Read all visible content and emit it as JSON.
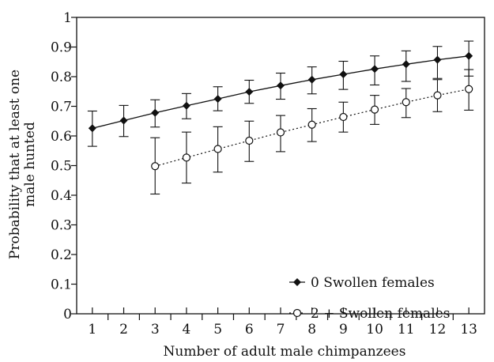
{
  "chart_data": {
    "type": "line",
    "title": "",
    "xlabel": "Number of adult male chimpanzees",
    "ylabel_lines": [
      "Probability that at least one",
      "male hunted"
    ],
    "xlim": [
      0.5,
      13.5
    ],
    "ylim": [
      0,
      1
    ],
    "x_ticks": [
      "1",
      "2",
      "3",
      "4",
      "5",
      "6",
      "7",
      "8",
      "9",
      "10",
      "11",
      "12",
      "13"
    ],
    "y_ticks": [
      "0",
      "0.1",
      "0.2",
      "0.3",
      "0.4",
      "0.5",
      "0.6",
      "0.7",
      "0.8",
      "0.9",
      "1"
    ],
    "grid": false,
    "legend_position": "bottom-right",
    "series": [
      {
        "name": "0 Swollen females",
        "marker": "filled-diamond",
        "line_style": "solid",
        "x": [
          1,
          2,
          3,
          4,
          5,
          6,
          7,
          8,
          9,
          10,
          11,
          12,
          13
        ],
        "y": [
          0.626,
          0.652,
          0.678,
          0.702,
          0.725,
          0.749,
          0.77,
          0.79,
          0.808,
          0.826,
          0.842,
          0.857,
          0.87
        ],
        "err_low": [
          0.565,
          0.598,
          0.63,
          0.658,
          0.685,
          0.71,
          0.724,
          0.742,
          0.757,
          0.772,
          0.784,
          0.794,
          0.802
        ],
        "err_high": [
          0.684,
          0.703,
          0.722,
          0.743,
          0.766,
          0.788,
          0.812,
          0.833,
          0.852,
          0.87,
          0.887,
          0.902,
          0.92
        ]
      },
      {
        "name": "2 + Swollen females",
        "marker": "open-circle",
        "line_style": "dotted",
        "x": [
          3,
          4,
          5,
          6,
          7,
          8,
          9,
          10,
          11,
          12,
          13
        ],
        "y": [
          0.498,
          0.527,
          0.556,
          0.584,
          0.612,
          0.638,
          0.664,
          0.689,
          0.714,
          0.737,
          0.758
        ],
        "err_low": [
          0.404,
          0.441,
          0.478,
          0.514,
          0.547,
          0.581,
          0.613,
          0.639,
          0.662,
          0.682,
          0.687
        ],
        "err_high": [
          0.594,
          0.613,
          0.631,
          0.65,
          0.669,
          0.692,
          0.714,
          0.737,
          0.76,
          0.79,
          0.824
        ]
      }
    ]
  }
}
